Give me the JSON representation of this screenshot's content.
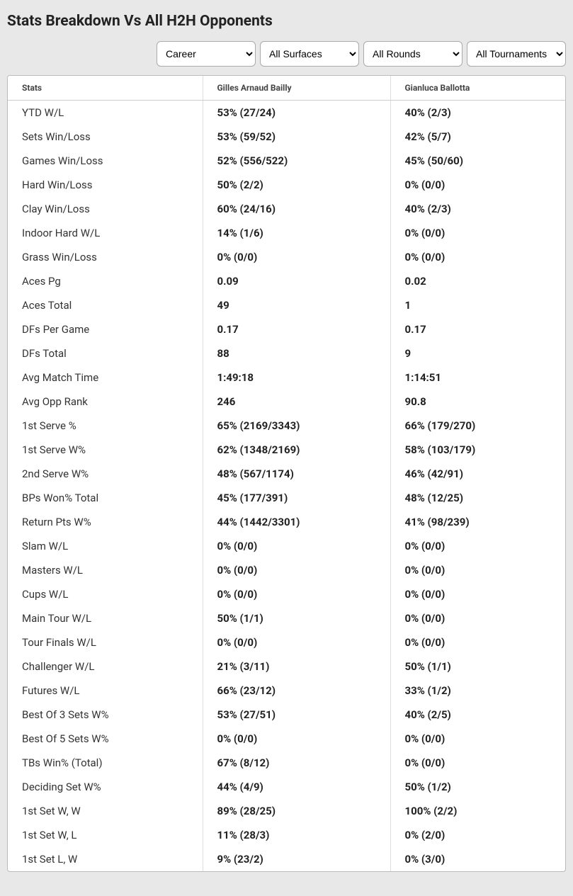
{
  "title": "Stats Breakdown Vs All H2H Opponents",
  "filters": {
    "period": {
      "selected": "Career",
      "options": [
        "Career"
      ]
    },
    "surface": {
      "selected": "All Surfaces",
      "options": [
        "All Surfaces"
      ]
    },
    "round": {
      "selected": "All Rounds",
      "options": [
        "All Rounds"
      ]
    },
    "tournament": {
      "selected": "All Tournaments",
      "options": [
        "All Tournaments"
      ]
    }
  },
  "columns": {
    "stats": "Stats",
    "p1": "Gilles Arnaud Bailly",
    "p2": "Gianluca Ballotta"
  },
  "rows": [
    {
      "label": "YTD W/L",
      "p1": "53% (27/24)",
      "p2": "40% (2/3)"
    },
    {
      "label": "Sets Win/Loss",
      "p1": "53% (59/52)",
      "p2": "42% (5/7)"
    },
    {
      "label": "Games Win/Loss",
      "p1": "52% (556/522)",
      "p2": "45% (50/60)"
    },
    {
      "label": "Hard Win/Loss",
      "p1": "50% (2/2)",
      "p2": "0% (0/0)"
    },
    {
      "label": "Clay Win/Loss",
      "p1": "60% (24/16)",
      "p2": "40% (2/3)"
    },
    {
      "label": "Indoor Hard W/L",
      "p1": "14% (1/6)",
      "p2": "0% (0/0)"
    },
    {
      "label": "Grass Win/Loss",
      "p1": "0% (0/0)",
      "p2": "0% (0/0)"
    },
    {
      "label": "Aces Pg",
      "p1": "0.09",
      "p2": "0.02"
    },
    {
      "label": "Aces Total",
      "p1": "49",
      "p2": "1"
    },
    {
      "label": "DFs Per Game",
      "p1": "0.17",
      "p2": "0.17"
    },
    {
      "label": "DFs Total",
      "p1": "88",
      "p2": "9"
    },
    {
      "label": "Avg Match Time",
      "p1": "1:49:18",
      "p2": "1:14:51"
    },
    {
      "label": "Avg Opp Rank",
      "p1": "246",
      "p2": "90.8"
    },
    {
      "label": "1st Serve %",
      "p1": "65% (2169/3343)",
      "p2": "66% (179/270)"
    },
    {
      "label": "1st Serve W%",
      "p1": "62% (1348/2169)",
      "p2": "58% (103/179)"
    },
    {
      "label": "2nd Serve W%",
      "p1": "48% (567/1174)",
      "p2": "46% (42/91)"
    },
    {
      "label": "BPs Won% Total",
      "p1": "45% (177/391)",
      "p2": "48% (12/25)"
    },
    {
      "label": "Return Pts W%",
      "p1": "44% (1442/3301)",
      "p2": "41% (98/239)"
    },
    {
      "label": "Slam W/L",
      "p1": "0% (0/0)",
      "p2": "0% (0/0)"
    },
    {
      "label": "Masters W/L",
      "p1": "0% (0/0)",
      "p2": "0% (0/0)"
    },
    {
      "label": "Cups W/L",
      "p1": "0% (0/0)",
      "p2": "0% (0/0)"
    },
    {
      "label": "Main Tour W/L",
      "p1": "50% (1/1)",
      "p2": "0% (0/0)"
    },
    {
      "label": "Tour Finals W/L",
      "p1": "0% (0/0)",
      "p2": "0% (0/0)"
    },
    {
      "label": "Challenger W/L",
      "p1": "21% (3/11)",
      "p2": "50% (1/1)"
    },
    {
      "label": "Futures W/L",
      "p1": "66% (23/12)",
      "p2": "33% (1/2)"
    },
    {
      "label": "Best Of 3 Sets W%",
      "p1": "53% (27/51)",
      "p2": "40% (2/5)"
    },
    {
      "label": "Best Of 5 Sets W%",
      "p1": "0% (0/0)",
      "p2": "0% (0/0)"
    },
    {
      "label": "TBs Win% (Total)",
      "p1": "67% (8/12)",
      "p2": "0% (0/0)"
    },
    {
      "label": "Deciding Set W%",
      "p1": "44% (4/9)",
      "p2": "50% (1/2)"
    },
    {
      "label": "1st Set W, W",
      "p1": "89% (28/25)",
      "p2": "100% (2/2)"
    },
    {
      "label": "1st Set W, L",
      "p1": "11% (28/3)",
      "p2": "0% (2/0)"
    },
    {
      "label": "1st Set L, W",
      "p1": "9% (23/2)",
      "p2": "0% (3/0)"
    }
  ]
}
